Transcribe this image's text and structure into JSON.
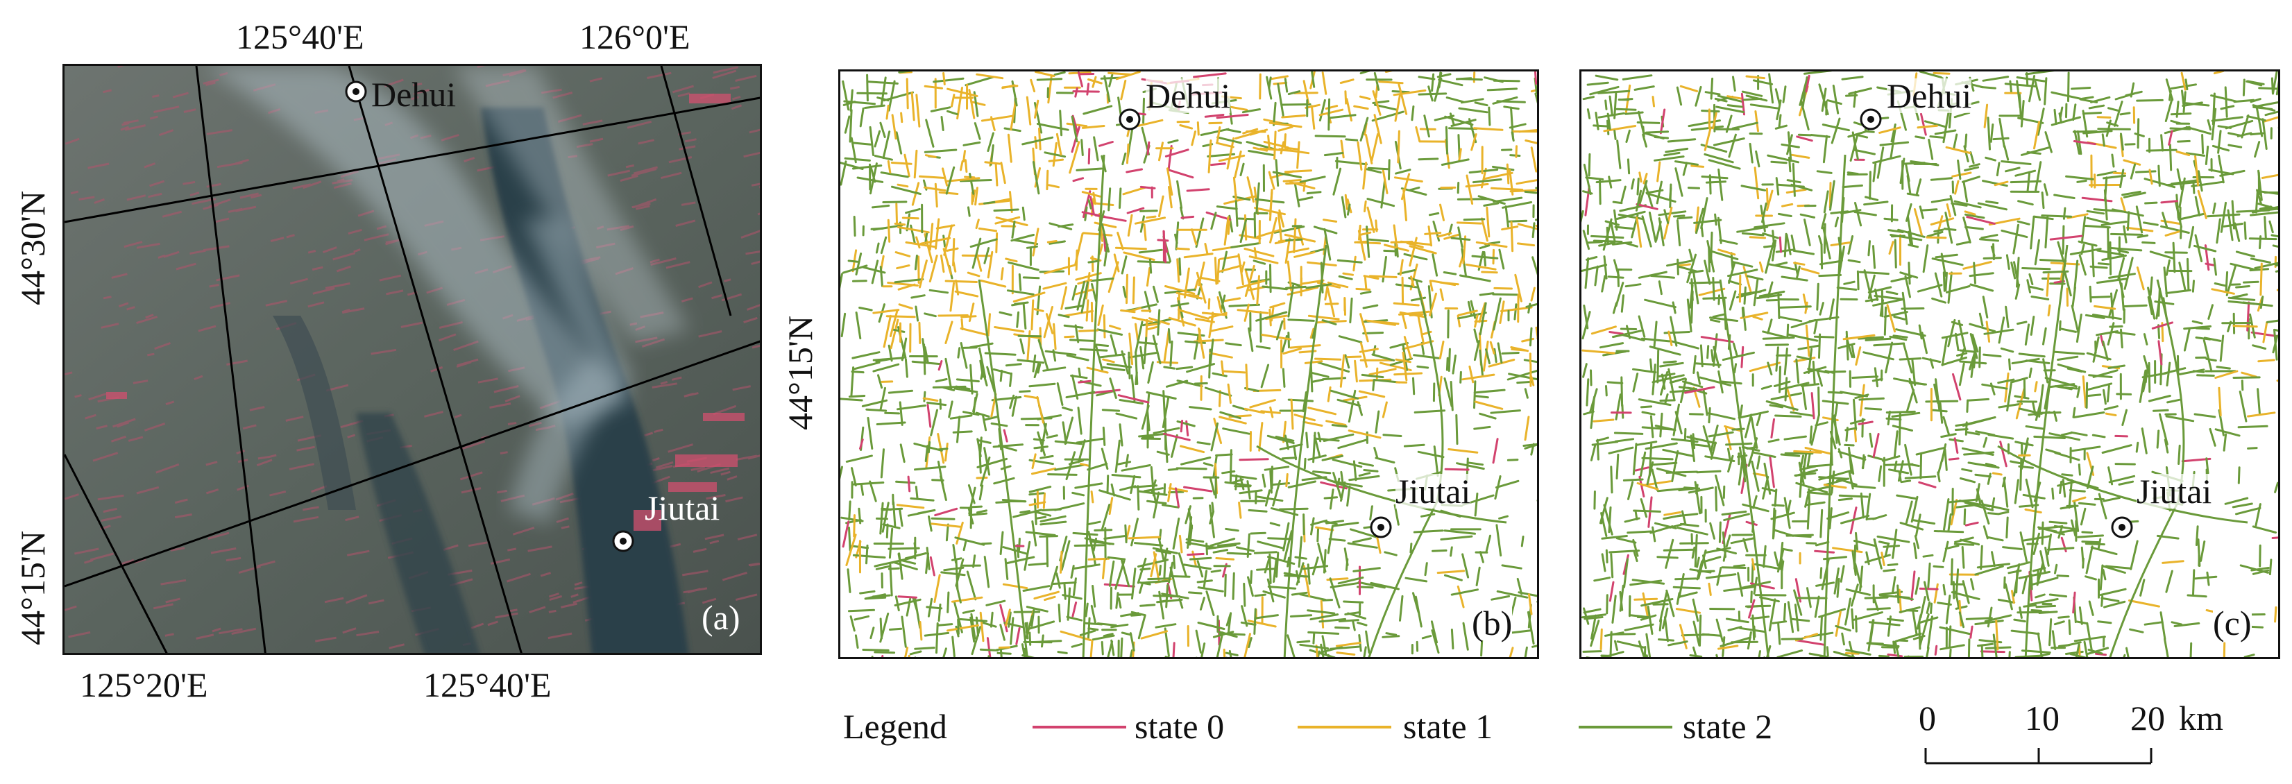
{
  "panel_a": {
    "tag": "(a)",
    "top_ticks": [
      "125°40'E",
      "126°0'E"
    ],
    "bottom_ticks": [
      "125°20'E",
      "125°40'E"
    ],
    "left_ticks": [
      "44°30'N",
      "44°15'N"
    ],
    "right_ticks": [
      "44°15'N"
    ],
    "cities": [
      "Dehui",
      "Jiutai"
    ]
  },
  "panel_b": {
    "tag": "(b)",
    "cities": [
      "Dehui",
      "Jiutai"
    ]
  },
  "panel_c": {
    "tag": "(c)",
    "cities": [
      "Dehui",
      "Jiutai"
    ]
  },
  "legend": {
    "title": "Legend",
    "items": [
      {
        "label": "state 0",
        "color": "#d2426e"
      },
      {
        "label": "state 1",
        "color": "#e9b32a"
      },
      {
        "label": "state 2",
        "color": "#6a9a3a"
      }
    ]
  },
  "scale_bar": {
    "ticks": [
      "0",
      "10",
      "20"
    ],
    "unit": "km"
  },
  "colors": {
    "imagery_base": "#4f5a55",
    "water": "#1f3640",
    "cloud": "#b9c9d2",
    "crop": "#c84a6a"
  },
  "icons": {
    "city_marker": "bullseye-icon"
  }
}
